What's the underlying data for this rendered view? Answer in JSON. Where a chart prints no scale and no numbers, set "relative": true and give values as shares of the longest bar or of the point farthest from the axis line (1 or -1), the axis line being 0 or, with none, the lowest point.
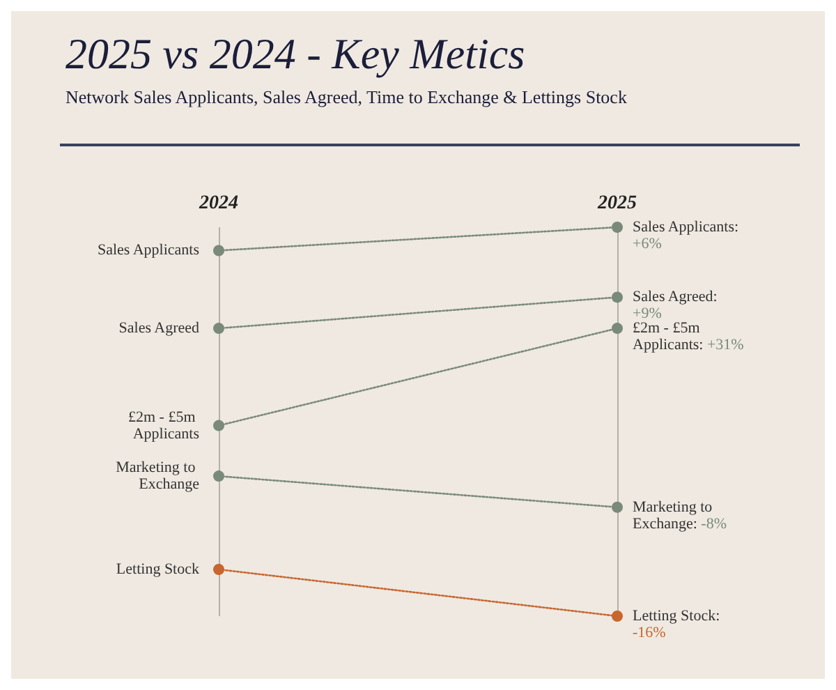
{
  "chart_data": {
    "type": "line",
    "title": "2025 vs 2024 - Key Metics",
    "subtitle": "Network Sales Applicants, Sales Agreed, Time to Exchange & Lettings Stock",
    "categories": [
      "2024",
      "2025"
    ],
    "relative": true,
    "grid": "x",
    "marker": "circle",
    "line_style": "dotted",
    "legend": false,
    "series": [
      {
        "name": "Sales Applicants",
        "color": "#7a8a7a",
        "values": [
          0.94,
          1
        ]
      },
      {
        "name": "Sales Agreed",
        "color": "#7a8a7a",
        "values": [
          0.74,
          0.82
        ]
      },
      {
        "name": "£2m - £5m Applicants",
        "color": "#7a8a7a",
        "values": [
          0.49,
          0.74
        ]
      },
      {
        "name": "Marketing to Exchange",
        "color": "#7a8a7a",
        "values": [
          0.36,
          0.28
        ]
      },
      {
        "name": "Letting Stock",
        "color": "#c8662e",
        "values": [
          0.12,
          0
        ]
      }
    ],
    "annotations": [
      {
        "text": "Sales Applicants: +6%",
        "x": "2025",
        "y": 1
      },
      {
        "text": "Sales Agreed: +9%",
        "x": "2025",
        "y": 0.82
      },
      {
        "text": "£2m - £5m Applicants: +31%",
        "x": "2025",
        "y": 0.74
      },
      {
        "text": "Marketing to Exchange: -8%",
        "x": "2025",
        "y": 0.28
      },
      {
        "text": "Letting Stock: -16%",
        "x": "2025",
        "y": 0
      }
    ]
  }
}
